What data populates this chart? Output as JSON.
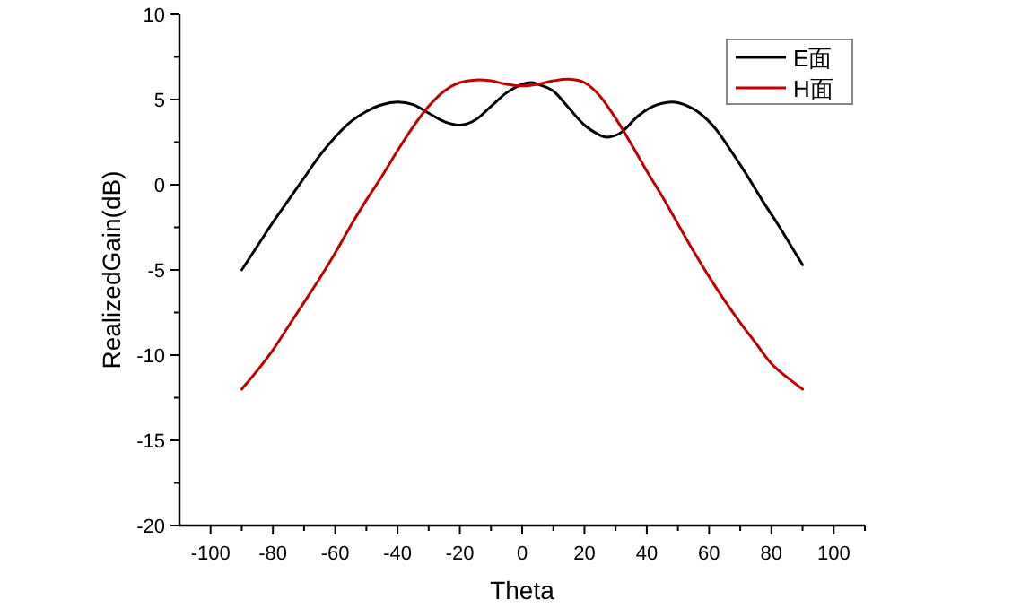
{
  "chart_data": {
    "type": "line",
    "xlabel": "Theta",
    "ylabel": "RealizedGain(dB)",
    "legend": "top right",
    "grid": false,
    "marker": "none",
    "line_style": "solid",
    "xlim": [
      -110,
      110
    ],
    "ylim": [
      -20,
      10
    ],
    "xticks": [
      -100,
      {
        "value": -90,
        "label": null
      },
      -80,
      {
        "value": -70,
        "label": null
      },
      -60,
      {
        "value": -50,
        "label": null
      },
      -40,
      {
        "value": -30,
        "label": null
      },
      -20,
      {
        "value": -10,
        "label": null
      },
      0,
      {
        "value": 10,
        "label": null
      },
      20,
      {
        "value": 30,
        "label": null
      },
      40,
      {
        "value": 50,
        "label": null
      },
      60,
      {
        "value": 70,
        "label": null
      },
      80,
      {
        "value": 90,
        "label": null
      },
      100,
      {
        "value": 110,
        "label": null
      }
    ],
    "yticks": [
      -20,
      {
        "value": -17.5,
        "label": null
      },
      -15,
      {
        "value": -12.5,
        "label": null
      },
      -10,
      {
        "value": -7.5,
        "label": null
      },
      -5,
      {
        "value": -2.5,
        "label": null
      },
      0,
      {
        "value": 2.5,
        "label": null
      },
      5,
      {
        "value": 7.5,
        "label": null
      },
      10
    ],
    "series": [
      {
        "name": "E面",
        "color": "#000000",
        "x": [
          -90,
          -85,
          -80,
          -75,
          -70,
          -65,
          -60,
          -55,
          -50,
          -45,
          -40,
          -35,
          -30,
          -25,
          -20,
          -15,
          -10,
          -5,
          0,
          3,
          5,
          10,
          15,
          20,
          25,
          28,
          32,
          37,
          42,
          48,
          52,
          57,
          62,
          67,
          72,
          77,
          82,
          86,
          90
        ],
        "values": [
          -5,
          -3.6,
          -2.2,
          -0.9,
          0.4,
          1.7,
          2.8,
          3.7,
          4.3,
          4.7,
          4.85,
          4.7,
          4.2,
          3.7,
          3.5,
          3.8,
          4.6,
          5.4,
          5.9,
          6.0,
          5.9,
          5.5,
          4.5,
          3.5,
          2.9,
          2.8,
          3.1,
          4.0,
          4.6,
          4.85,
          4.7,
          4.2,
          3.3,
          2.0,
          0.6,
          -0.9,
          -2.3,
          -3.5,
          -4.7
        ]
      },
      {
        "name": "H面",
        "color": "#c00000",
        "x": [
          -90,
          -85,
          -80,
          -75,
          -70,
          -65,
          -60,
          -55,
          -50,
          -45,
          -40,
          -35,
          -30,
          -25,
          -20,
          -15,
          -10,
          -5,
          0,
          5,
          10,
          15,
          20,
          25,
          30,
          35,
          40,
          45,
          50,
          55,
          60,
          65,
          70,
          75,
          80,
          85,
          90
        ],
        "values": [
          -12,
          -10.9,
          -9.7,
          -8.3,
          -6.9,
          -5.5,
          -4.0,
          -2.4,
          -0.9,
          0.5,
          2.0,
          3.4,
          4.6,
          5.5,
          6.0,
          6.15,
          6.1,
          5.9,
          5.8,
          5.9,
          6.1,
          6.2,
          6.0,
          5.2,
          3.9,
          2.4,
          0.8,
          -0.7,
          -2.3,
          -3.9,
          -5.4,
          -6.8,
          -8.1,
          -9.3,
          -10.5,
          -11.3,
          -12
        ]
      }
    ]
  }
}
